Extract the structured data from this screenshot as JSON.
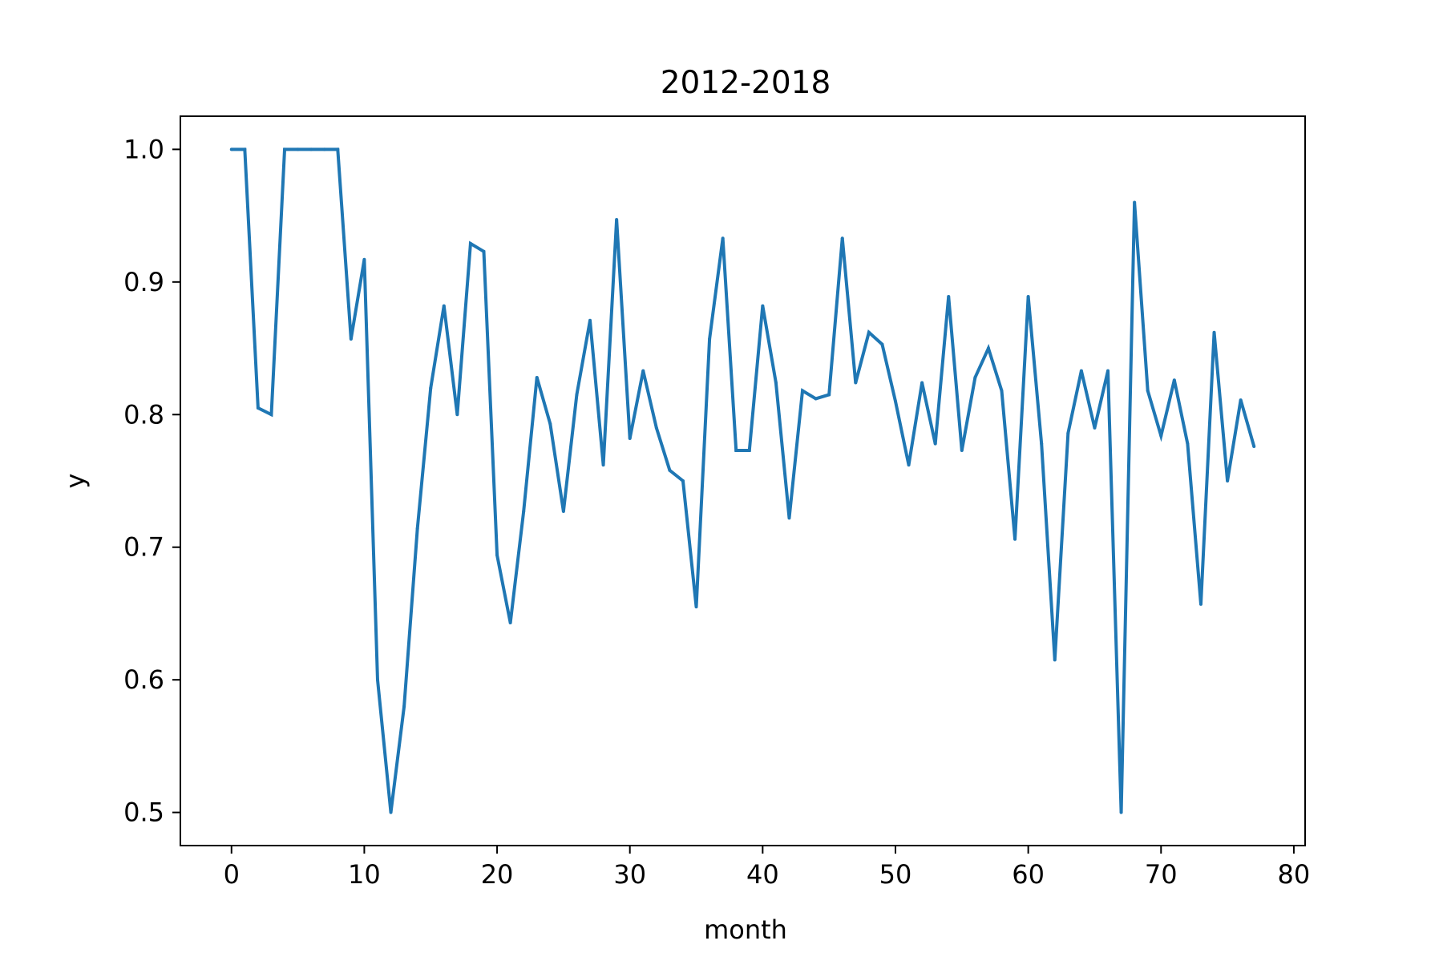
{
  "chart_data": {
    "type": "line",
    "title": "2012-2018",
    "xlabel": "month",
    "ylabel": "y",
    "xlim": [
      -3.85,
      80.85
    ],
    "ylim": [
      0.475,
      1.025
    ],
    "xticks": [
      0,
      10,
      20,
      30,
      40,
      50,
      60,
      70,
      80
    ],
    "yticks": [
      0.5,
      0.6,
      0.7,
      0.8,
      0.9,
      1.0
    ],
    "xtick_labels": [
      "0",
      "10",
      "20",
      "30",
      "40",
      "50",
      "60",
      "70",
      "80"
    ],
    "ytick_labels": [
      "0.5",
      "0.6",
      "0.7",
      "0.8",
      "0.9",
      "1.0"
    ],
    "grid": false,
    "series_color": "#1f77b4",
    "series": [
      {
        "x": [
          0,
          1,
          2,
          3,
          4,
          5,
          6,
          7,
          8,
          9,
          10,
          11,
          12,
          13,
          14,
          15,
          16,
          17,
          18,
          19,
          20,
          21,
          22,
          23,
          24,
          25,
          26,
          27,
          28,
          29,
          30,
          31,
          32,
          33,
          34,
          35,
          36,
          37,
          38,
          39,
          40,
          41,
          42,
          43,
          44,
          45,
          46,
          47,
          48,
          49,
          50,
          51,
          52,
          53,
          54,
          55,
          56,
          57,
          58,
          59,
          60,
          61,
          62,
          63,
          64,
          65,
          66,
          67,
          68,
          69,
          70,
          71,
          72,
          73,
          74,
          75,
          76,
          77
        ],
        "values": [
          1.0,
          1.0,
          0.805,
          0.8,
          1.0,
          1.0,
          1.0,
          1.0,
          1.0,
          0.857,
          0.917,
          0.6,
          0.5,
          0.58,
          0.714,
          0.82,
          0.882,
          0.8,
          0.929,
          0.923,
          0.694,
          0.643,
          0.727,
          0.828,
          0.793,
          0.727,
          0.815,
          0.871,
          0.762,
          0.947,
          0.782,
          0.833,
          0.79,
          0.758,
          0.75,
          0.655,
          0.857,
          0.933,
          0.773,
          0.773,
          0.882,
          0.824,
          0.722,
          0.818,
          0.812,
          0.815,
          0.933,
          0.824,
          0.862,
          0.853,
          0.81,
          0.762,
          0.824,
          0.778,
          0.889,
          0.773,
          0.828,
          0.85,
          0.818,
          0.706,
          0.889,
          0.778,
          0.615,
          0.786,
          0.833,
          0.79,
          0.833,
          0.5,
          0.96,
          0.818,
          0.784,
          0.826,
          0.778,
          0.657,
          0.862,
          0.75,
          0.811,
          0.776
        ]
      }
    ]
  }
}
